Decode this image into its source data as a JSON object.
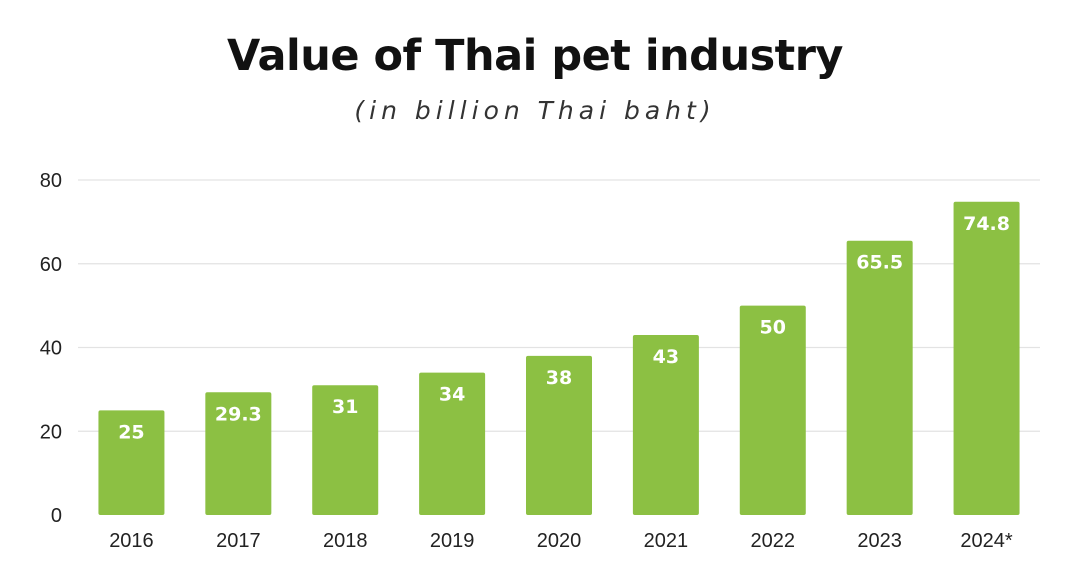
{
  "chart_data": {
    "type": "bar",
    "title": "Value of Thai pet industry",
    "subtitle": "(in billion Thai baht)",
    "xlabel": "",
    "ylabel": "",
    "categories": [
      "2016",
      "2017",
      "2018",
      "2019",
      "2020",
      "2021",
      "2022",
      "2023",
      "2024*"
    ],
    "values": [
      25,
      29.3,
      31,
      34,
      38,
      43,
      50,
      65.5,
      74.8
    ],
    "value_labels": [
      "25",
      "29.3",
      "31",
      "34",
      "38",
      "43",
      "50",
      "65.5",
      "74.8"
    ],
    "ylim": [
      0,
      80
    ],
    "yticks": [
      0,
      20,
      40,
      60,
      80
    ],
    "ytick_labels": [
      "0",
      "20",
      "40",
      "60",
      "80"
    ],
    "grid": true,
    "legend": "none",
    "bar_color": "#8cc043"
  }
}
